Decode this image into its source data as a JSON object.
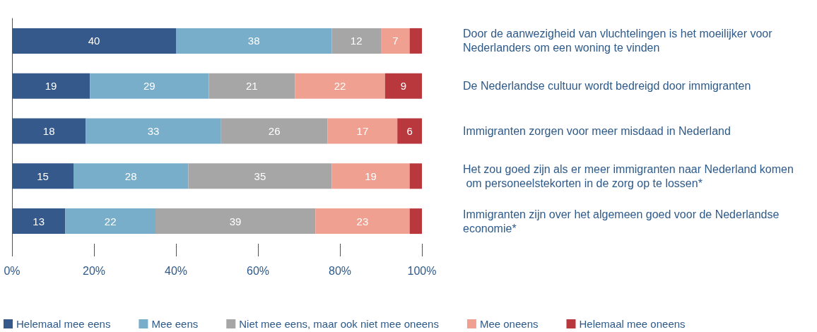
{
  "chart_data": {
    "type": "bar",
    "orientation": "horizontal",
    "stacked": true,
    "legend": "bottom",
    "grid": false,
    "categories": [
      "Door de aanwezigheid van vluchtelingen is het moeilijker voor Nederlanders om een woning te vinden",
      "De Nederlandse cultuur wordt bedreigd door immigranten",
      "Immigranten zorgen voor meer misdaad in Nederland",
      "Het zou goed zijn als er meer immigranten naar Nederland komen om personeelstekorten in de zorg op te lossen*",
      "Immigranten zijn over het algemeen goed voor de Nederlandse economie*"
    ],
    "xlim": [
      0,
      100
    ],
    "xticks": [
      {
        "value": 0,
        "label": "0%"
      },
      {
        "value": 20,
        "label": "20%"
      },
      {
        "value": 40,
        "label": "40%"
      },
      {
        "value": 60,
        "label": "60%"
      },
      {
        "value": 80,
        "label": "80%"
      },
      {
        "value": 100,
        "label": "100%"
      }
    ],
    "series": [
      {
        "name": "Helemaal mee eens",
        "color": "#34598a",
        "values": [
          40,
          19,
          18,
          15,
          13
        ],
        "value_labels": [
          "40",
          "19",
          "18",
          "15",
          "13"
        ]
      },
      {
        "name": "Mee eens",
        "color": "#79aecb",
        "values": [
          38,
          29,
          33,
          28,
          22
        ],
        "value_labels": [
          "38",
          "29",
          "33",
          "28",
          "22"
        ]
      },
      {
        "name": "Niet mee eens, maar ook niet mee oneens",
        "color": "#a6a6a6",
        "values": [
          12,
          21,
          26,
          35,
          39
        ],
        "value_labels": [
          "12",
          "21",
          "26",
          "35",
          "39"
        ]
      },
      {
        "name": "Mee oneens",
        "color": "#f0a091",
        "values": [
          7,
          22,
          17,
          19,
          23
        ],
        "value_labels": [
          "7",
          "22",
          "17",
          "19",
          "23"
        ]
      },
      {
        "name": "Helemaal mee oneens",
        "color": "#b8383e",
        "values": [
          3,
          9,
          6,
          3,
          3
        ],
        "value_labels": [
          null,
          "9",
          "6",
          null,
          null
        ]
      }
    ]
  }
}
